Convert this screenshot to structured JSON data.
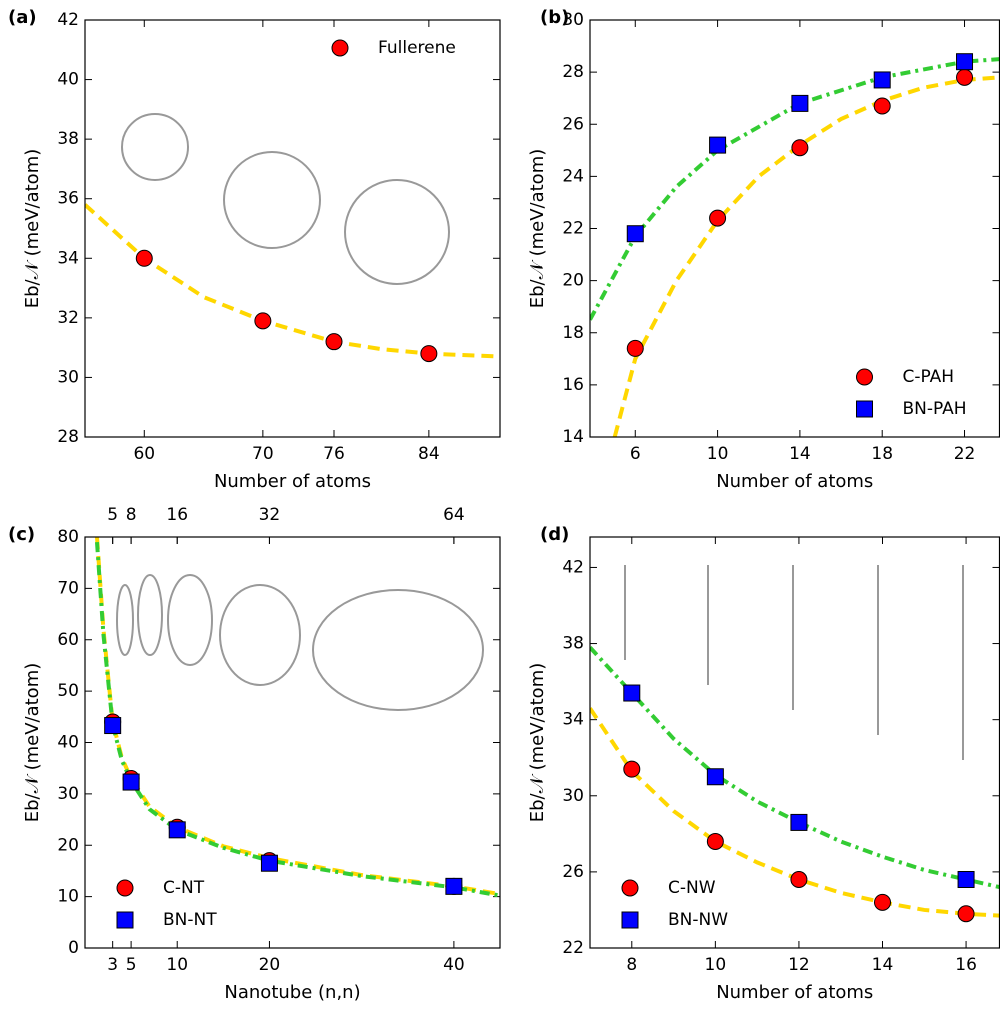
{
  "chart_data": [
    {
      "type": "scatter",
      "panel_label": "(a)",
      "xlabel": "Number of atoms",
      "ylabel": "Eb/𝒩 (meV/atom)",
      "xlim": [
        55,
        90
      ],
      "ylim": [
        28,
        42
      ],
      "xticks": [
        60,
        70,
        76,
        84
      ],
      "yticks": [
        28,
        30,
        32,
        34,
        36,
        38,
        40,
        42
      ],
      "legend": "upper right",
      "series": [
        {
          "name": "Fullerene",
          "color": "#ff0000",
          "marker": "circle",
          "x": [
            60,
            70,
            76,
            84
          ],
          "values": [
            34.0,
            31.9,
            31.2,
            30.8
          ]
        }
      ],
      "fits": [
        {
          "color": "#ffd700",
          "style": "dashed",
          "x": [
            55,
            60,
            65,
            70,
            76,
            80,
            84,
            90
          ],
          "values": [
            35.8,
            34.0,
            32.7,
            31.9,
            31.2,
            30.95,
            30.8,
            30.7
          ]
        }
      ]
    },
    {
      "type": "scatter",
      "panel_label": "(b)",
      "xlabel": "Number of atoms",
      "ylabel": "Eb/𝒩 (meV/atom)",
      "xlim": [
        3.8,
        23.7
      ],
      "ylim": [
        14,
        30
      ],
      "xticks": [
        6,
        10,
        14,
        18,
        22
      ],
      "yticks": [
        14,
        16,
        18,
        20,
        22,
        24,
        26,
        28,
        30
      ],
      "legend": "lower right",
      "series": [
        {
          "name": "C-PAH",
          "color": "#ff0000",
          "marker": "circle",
          "x": [
            6,
            10,
            14,
            18,
            22
          ],
          "values": [
            17.4,
            22.4,
            25.1,
            26.7,
            27.8
          ]
        },
        {
          "name": "BN-PAH",
          "color": "#0000ff",
          "marker": "square",
          "x": [
            6,
            10,
            14,
            18,
            22
          ],
          "values": [
            21.8,
            25.2,
            26.8,
            27.7,
            28.4
          ]
        }
      ],
      "fits": [
        {
          "color": "#ffd700",
          "style": "dashed",
          "x": [
            5.0,
            6,
            8,
            10,
            12,
            14,
            16,
            18,
            20,
            22,
            23.7
          ],
          "values": [
            14,
            17.0,
            20.0,
            22.3,
            24.0,
            25.2,
            26.2,
            26.9,
            27.4,
            27.7,
            27.8
          ]
        },
        {
          "color": "#33cc33",
          "style": "dashdot",
          "x": [
            3.8,
            6,
            8,
            10,
            14,
            18,
            22,
            23.7
          ],
          "values": [
            18.5,
            21.7,
            23.6,
            25.0,
            26.8,
            27.8,
            28.4,
            28.5
          ]
        }
      ]
    },
    {
      "type": "scatter",
      "panel_label": "(c)",
      "xlabel": "Nanotube (n,n)",
      "ylabel": "Eb/𝒩 (meV/atom)",
      "xlim": [
        0,
        45
      ],
      "ylim": [
        0,
        80
      ],
      "xticks": [
        3,
        5,
        10,
        20,
        40
      ],
      "yticks": [
        0,
        10,
        20,
        30,
        40,
        50,
        60,
        70,
        80
      ],
      "x2ticks": [
        {
          "value": 3,
          "label": "5"
        },
        {
          "value": 5,
          "label": "8"
        },
        {
          "value": 10,
          "label": "16"
        },
        {
          "value": 20,
          "label": "32"
        },
        {
          "value": 40,
          "label": "64"
        }
      ],
      "legend": "lower left",
      "series": [
        {
          "name": "C-NT",
          "color": "#ff0000",
          "marker": "circle",
          "x": [
            3,
            5,
            10,
            20,
            40
          ],
          "values": [
            44,
            33,
            23.5,
            17,
            12
          ]
        },
        {
          "name": "BN-NT",
          "color": "#0000ff",
          "marker": "square",
          "x": [
            3,
            5,
            10,
            20,
            40
          ],
          "values": [
            43.3,
            32.3,
            23,
            16.5,
            12
          ]
        }
      ],
      "fits": [
        {
          "color": "#ffd700",
          "style": "dashed",
          "x": [
            1.3,
            2,
            3,
            4,
            5,
            7,
            10,
            15,
            20,
            30,
            40,
            45
          ],
          "values": [
            80,
            62,
            44,
            37,
            33,
            27.5,
            23.5,
            19.8,
            17.5,
            14.2,
            12,
            10.5
          ]
        },
        {
          "color": "#33cc33",
          "style": "dashdot",
          "x": [
            1.3,
            2,
            3,
            4,
            5,
            7,
            10,
            15,
            20,
            30,
            40,
            45
          ],
          "values": [
            79,
            61,
            43.5,
            36.5,
            32.5,
            27,
            23,
            19.5,
            17,
            14,
            11.8,
            10.2
          ]
        }
      ]
    },
    {
      "type": "scatter",
      "panel_label": "(d)",
      "xlabel": "Number of atoms",
      "ylabel": "Eb/𝒩 (meV/atom)",
      "xlim": [
        7,
        16.8
      ],
      "ylim": [
        22,
        43.6
      ],
      "xticks": [
        8,
        10,
        12,
        14,
        16
      ],
      "yticks": [
        22,
        26,
        30,
        34,
        38,
        42
      ],
      "legend": "lower left",
      "series": [
        {
          "name": "C-NW",
          "color": "#ff0000",
          "marker": "circle",
          "x": [
            8,
            10,
            12,
            14,
            16
          ],
          "values": [
            31.4,
            27.6,
            25.6,
            24.4,
            23.8
          ]
        },
        {
          "name": "BN-NW",
          "color": "#0000ff",
          "marker": "square",
          "x": [
            8,
            10,
            12,
            14,
            16
          ],
          "values": [
            35.4,
            31.0,
            28.6,
            null,
            25.6
          ]
        }
      ],
      "fits": [
        {
          "color": "#ffd700",
          "style": "dashed",
          "x": [
            7,
            8,
            9,
            10,
            11,
            12,
            13,
            14,
            15,
            16,
            16.8
          ],
          "values": [
            34.6,
            31.3,
            29.2,
            27.6,
            26.5,
            25.6,
            24.9,
            24.4,
            24.0,
            23.8,
            23.7
          ]
        },
        {
          "color": "#33cc33",
          "style": "dashdot",
          "x": [
            7,
            8,
            9,
            10,
            11,
            12,
            13,
            14,
            15,
            16,
            16.8
          ],
          "values": [
            37.8,
            35.4,
            33.0,
            31.1,
            29.7,
            28.6,
            27.6,
            26.8,
            26.1,
            25.6,
            25.2
          ]
        }
      ]
    }
  ]
}
